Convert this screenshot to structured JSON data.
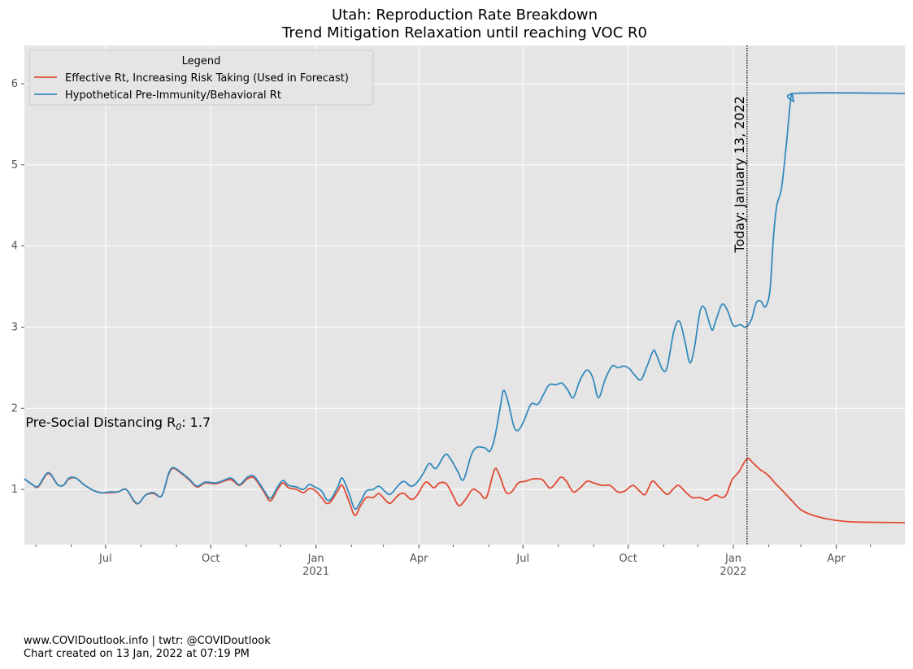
{
  "title_line1": "Utah: Reproduction Rate Breakdown",
  "title_line2": "Trend Mitigation Relaxation until reaching VOC R0",
  "footer_line1": "www.COVIDoutlook.info | twtr: @COVIDoutlook",
  "footer_line2": "Chart created on 13 Jan, 2022 at 07:19 PM",
  "colors": {
    "plot_bg": "#e5e5e5",
    "grid": "#ffffff",
    "effective": "#e24a33",
    "hypothetical": "#348abd",
    "tick_text": "#555555"
  },
  "chart_data": {
    "type": "line",
    "xlim": [
      "2020-04-21",
      "2022-05-31"
    ],
    "ylim": [
      0.32,
      6.47
    ],
    "grid": true,
    "yticks": [
      1,
      2,
      3,
      4,
      5,
      6
    ],
    "xticks": [
      {
        "date": "2020-07-01",
        "label": "Jul",
        "sublabel": ""
      },
      {
        "date": "2020-10-01",
        "label": "Oct",
        "sublabel": ""
      },
      {
        "date": "2021-01-01",
        "label": "Jan",
        "sublabel": "2021"
      },
      {
        "date": "2021-04-01",
        "label": "Apr",
        "sublabel": ""
      },
      {
        "date": "2021-07-01",
        "label": "Jul",
        "sublabel": ""
      },
      {
        "date": "2021-10-01",
        "label": "Oct",
        "sublabel": ""
      },
      {
        "date": "2022-01-01",
        "label": "Jan",
        "sublabel": "2022"
      },
      {
        "date": "2022-04-01",
        "label": "Apr",
        "sublabel": ""
      }
    ],
    "legend": {
      "title": "Legend",
      "position": "top-left"
    },
    "series": [
      {
        "name": "Effective Rt, Increasing Risk Taking (Used in Forecast)",
        "color": "#e24a33",
        "points": [
          [
            "2020-04-21",
            1.13
          ],
          [
            "2020-04-28",
            1.06
          ],
          [
            "2020-05-03",
            1.03
          ],
          [
            "2020-05-10",
            1.18
          ],
          [
            "2020-05-14",
            1.18
          ],
          [
            "2020-05-20",
            1.06
          ],
          [
            "2020-05-25",
            1.05
          ],
          [
            "2020-05-30",
            1.13
          ],
          [
            "2020-06-05",
            1.14
          ],
          [
            "2020-06-12",
            1.06
          ],
          [
            "2020-06-20",
            0.99
          ],
          [
            "2020-06-27",
            0.96
          ],
          [
            "2020-07-05",
            0.96
          ],
          [
            "2020-07-12",
            0.97
          ],
          [
            "2020-07-19",
            1.0
          ],
          [
            "2020-07-26",
            0.85
          ],
          [
            "2020-07-30",
            0.83
          ],
          [
            "2020-08-05",
            0.93
          ],
          [
            "2020-08-12",
            0.95
          ],
          [
            "2020-08-19",
            0.92
          ],
          [
            "2020-08-25",
            1.18
          ],
          [
            "2020-08-29",
            1.26
          ],
          [
            "2020-09-05",
            1.2
          ],
          [
            "2020-09-12",
            1.12
          ],
          [
            "2020-09-19",
            1.03
          ],
          [
            "2020-09-26",
            1.08
          ],
          [
            "2020-10-05",
            1.07
          ],
          [
            "2020-10-12",
            1.1
          ],
          [
            "2020-10-19",
            1.12
          ],
          [
            "2020-10-26",
            1.05
          ],
          [
            "2020-11-02",
            1.13
          ],
          [
            "2020-11-08",
            1.14
          ],
          [
            "2020-11-16",
            0.98
          ],
          [
            "2020-11-22",
            0.86
          ],
          [
            "2020-11-28",
            0.99
          ],
          [
            "2020-12-03",
            1.08
          ],
          [
            "2020-12-08",
            1.02
          ],
          [
            "2020-12-15",
            1.0
          ],
          [
            "2020-12-21",
            0.96
          ],
          [
            "2020-12-26",
            1.01
          ],
          [
            "2020-12-31",
            0.99
          ],
          [
            "2021-01-06",
            0.9
          ],
          [
            "2021-01-10",
            0.83
          ],
          [
            "2021-01-14",
            0.85
          ],
          [
            "2021-01-20",
            0.98
          ],
          [
            "2021-01-24",
            1.05
          ],
          [
            "2021-01-30",
            0.85
          ],
          [
            "2021-02-04",
            0.68
          ],
          [
            "2021-02-09",
            0.8
          ],
          [
            "2021-02-14",
            0.9
          ],
          [
            "2021-02-20",
            0.9
          ],
          [
            "2021-02-25",
            0.95
          ],
          [
            "2021-03-02",
            0.88
          ],
          [
            "2021-03-07",
            0.83
          ],
          [
            "2021-03-14",
            0.93
          ],
          [
            "2021-03-19",
            0.95
          ],
          [
            "2021-03-25",
            0.88
          ],
          [
            "2021-03-30",
            0.92
          ],
          [
            "2021-04-07",
            1.09
          ],
          [
            "2021-04-14",
            1.02
          ],
          [
            "2021-04-19",
            1.08
          ],
          [
            "2021-04-25",
            1.07
          ],
          [
            "2021-05-01",
            0.92
          ],
          [
            "2021-05-06",
            0.8
          ],
          [
            "2021-05-12",
            0.88
          ],
          [
            "2021-05-18",
            1.0
          ],
          [
            "2021-05-24",
            0.96
          ],
          [
            "2021-05-30",
            0.9
          ],
          [
            "2021-06-06",
            1.24
          ],
          [
            "2021-06-10",
            1.19
          ],
          [
            "2021-06-16",
            0.97
          ],
          [
            "2021-06-21",
            0.97
          ],
          [
            "2021-06-27",
            1.08
          ],
          [
            "2021-07-03",
            1.1
          ],
          [
            "2021-07-10",
            1.13
          ],
          [
            "2021-07-18",
            1.12
          ],
          [
            "2021-07-24",
            1.02
          ],
          [
            "2021-07-28",
            1.05
          ],
          [
            "2021-08-03",
            1.15
          ],
          [
            "2021-08-08",
            1.1
          ],
          [
            "2021-08-14",
            0.97
          ],
          [
            "2021-08-20",
            1.02
          ],
          [
            "2021-08-26",
            1.1
          ],
          [
            "2021-09-01",
            1.08
          ],
          [
            "2021-09-08",
            1.05
          ],
          [
            "2021-09-15",
            1.05
          ],
          [
            "2021-09-22",
            0.97
          ],
          [
            "2021-09-28",
            0.98
          ],
          [
            "2021-10-05",
            1.05
          ],
          [
            "2021-10-11",
            0.98
          ],
          [
            "2021-10-16",
            0.94
          ],
          [
            "2021-10-22",
            1.1
          ],
          [
            "2021-10-28",
            1.03
          ],
          [
            "2021-11-04",
            0.94
          ],
          [
            "2021-11-09",
            1.0
          ],
          [
            "2021-11-14",
            1.05
          ],
          [
            "2021-11-20",
            0.97
          ],
          [
            "2021-11-26",
            0.9
          ],
          [
            "2021-12-03",
            0.9
          ],
          [
            "2021-12-09",
            0.87
          ],
          [
            "2021-12-16",
            0.93
          ],
          [
            "2021-12-22",
            0.9
          ],
          [
            "2021-12-26",
            0.94
          ],
          [
            "2021-12-31",
            1.12
          ],
          [
            "2022-01-06",
            1.22
          ],
          [
            "2022-01-13",
            1.38
          ],
          [
            "2022-01-18",
            1.33
          ],
          [
            "2022-01-24",
            1.25
          ],
          [
            "2022-01-31",
            1.18
          ],
          [
            "2022-02-07",
            1.07
          ],
          [
            "2022-02-14",
            0.97
          ],
          [
            "2022-02-22",
            0.85
          ],
          [
            "2022-03-01",
            0.75
          ],
          [
            "2022-03-10",
            0.69
          ],
          [
            "2022-03-20",
            0.65
          ],
          [
            "2022-03-31",
            0.62
          ],
          [
            "2022-04-14",
            0.6
          ],
          [
            "2022-05-01",
            0.595
          ],
          [
            "2022-05-31",
            0.59
          ]
        ]
      },
      {
        "name": "Hypothetical Pre-Immunity/Behavioral Rt",
        "color": "#348abd",
        "points": [
          [
            "2020-04-21",
            1.13
          ],
          [
            "2020-04-28",
            1.06
          ],
          [
            "2020-05-03",
            1.04
          ],
          [
            "2020-05-10",
            1.19
          ],
          [
            "2020-05-14",
            1.19
          ],
          [
            "2020-05-20",
            1.06
          ],
          [
            "2020-05-25",
            1.05
          ],
          [
            "2020-05-30",
            1.14
          ],
          [
            "2020-06-05",
            1.14
          ],
          [
            "2020-06-12",
            1.06
          ],
          [
            "2020-06-20",
            0.99
          ],
          [
            "2020-06-27",
            0.96
          ],
          [
            "2020-07-05",
            0.97
          ],
          [
            "2020-07-12",
            0.97
          ],
          [
            "2020-07-19",
            1.0
          ],
          [
            "2020-07-26",
            0.86
          ],
          [
            "2020-07-30",
            0.83
          ],
          [
            "2020-08-05",
            0.93
          ],
          [
            "2020-08-12",
            0.96
          ],
          [
            "2020-08-19",
            0.92
          ],
          [
            "2020-08-25",
            1.19
          ],
          [
            "2020-08-29",
            1.27
          ],
          [
            "2020-09-05",
            1.21
          ],
          [
            "2020-09-12",
            1.13
          ],
          [
            "2020-09-19",
            1.04
          ],
          [
            "2020-09-26",
            1.09
          ],
          [
            "2020-10-05",
            1.08
          ],
          [
            "2020-10-12",
            1.11
          ],
          [
            "2020-10-19",
            1.14
          ],
          [
            "2020-10-26",
            1.06
          ],
          [
            "2020-11-02",
            1.15
          ],
          [
            "2020-11-08",
            1.16
          ],
          [
            "2020-11-16",
            1.0
          ],
          [
            "2020-11-22",
            0.89
          ],
          [
            "2020-11-28",
            1.02
          ],
          [
            "2020-12-03",
            1.11
          ],
          [
            "2020-12-08",
            1.05
          ],
          [
            "2020-12-15",
            1.03
          ],
          [
            "2020-12-21",
            1.0
          ],
          [
            "2020-12-26",
            1.06
          ],
          [
            "2020-12-31",
            1.03
          ],
          [
            "2021-01-06",
            0.98
          ],
          [
            "2021-01-10",
            0.88
          ],
          [
            "2021-01-14",
            0.88
          ],
          [
            "2021-01-20",
            1.03
          ],
          [
            "2021-01-24",
            1.14
          ],
          [
            "2021-01-30",
            0.95
          ],
          [
            "2021-02-04",
            0.76
          ],
          [
            "2021-02-09",
            0.85
          ],
          [
            "2021-02-14",
            0.98
          ],
          [
            "2021-02-20",
            1.0
          ],
          [
            "2021-02-25",
            1.04
          ],
          [
            "2021-03-02",
            0.98
          ],
          [
            "2021-03-07",
            0.94
          ],
          [
            "2021-03-14",
            1.05
          ],
          [
            "2021-03-19",
            1.1
          ],
          [
            "2021-03-25",
            1.04
          ],
          [
            "2021-03-30",
            1.08
          ],
          [
            "2021-04-05",
            1.2
          ],
          [
            "2021-04-10",
            1.32
          ],
          [
            "2021-04-16",
            1.26
          ],
          [
            "2021-04-24",
            1.43
          ],
          [
            "2021-04-29",
            1.37
          ],
          [
            "2021-05-05",
            1.22
          ],
          [
            "2021-05-10",
            1.12
          ],
          [
            "2021-05-17",
            1.43
          ],
          [
            "2021-05-22",
            1.52
          ],
          [
            "2021-05-29",
            1.51
          ],
          [
            "2021-06-02",
            1.47
          ],
          [
            "2021-06-06",
            1.62
          ],
          [
            "2021-06-11",
            2.0
          ],
          [
            "2021-06-14",
            2.22
          ],
          [
            "2021-06-18",
            2.08
          ],
          [
            "2021-06-23",
            1.78
          ],
          [
            "2021-06-27",
            1.73
          ],
          [
            "2021-07-02",
            1.85
          ],
          [
            "2021-07-08",
            2.05
          ],
          [
            "2021-07-14",
            2.05
          ],
          [
            "2021-07-19",
            2.17
          ],
          [
            "2021-07-24",
            2.29
          ],
          [
            "2021-07-30",
            2.29
          ],
          [
            "2021-08-04",
            2.31
          ],
          [
            "2021-08-09",
            2.23
          ],
          [
            "2021-08-14",
            2.13
          ],
          [
            "2021-08-20",
            2.35
          ],
          [
            "2021-08-26",
            2.47
          ],
          [
            "2021-08-31",
            2.38
          ],
          [
            "2021-09-05",
            2.13
          ],
          [
            "2021-09-11",
            2.36
          ],
          [
            "2021-09-17",
            2.52
          ],
          [
            "2021-09-22",
            2.5
          ],
          [
            "2021-09-27",
            2.52
          ],
          [
            "2021-10-02",
            2.49
          ],
          [
            "2021-10-06",
            2.42
          ],
          [
            "2021-10-12",
            2.35
          ],
          [
            "2021-10-17",
            2.5
          ],
          [
            "2021-10-23",
            2.71
          ],
          [
            "2021-10-26",
            2.65
          ],
          [
            "2021-10-31",
            2.48
          ],
          [
            "2021-11-04",
            2.5
          ],
          [
            "2021-11-10",
            2.95
          ],
          [
            "2021-11-15",
            3.07
          ],
          [
            "2021-11-20",
            2.8
          ],
          [
            "2021-11-24",
            2.56
          ],
          [
            "2021-11-28",
            2.75
          ],
          [
            "2021-12-03",
            3.2
          ],
          [
            "2021-12-07",
            3.23
          ],
          [
            "2021-12-13",
            2.97
          ],
          [
            "2021-12-16",
            3.05
          ],
          [
            "2021-12-22",
            3.28
          ],
          [
            "2021-12-27",
            3.2
          ],
          [
            "2022-01-01",
            3.02
          ],
          [
            "2022-01-07",
            3.03
          ],
          [
            "2022-01-12",
            3.0
          ],
          [
            "2022-01-17",
            3.1
          ],
          [
            "2022-01-21",
            3.3
          ],
          [
            "2022-01-25",
            3.32
          ],
          [
            "2022-01-29",
            3.25
          ],
          [
            "2022-02-02",
            3.45
          ],
          [
            "2022-02-05",
            4.1
          ],
          [
            "2022-02-08",
            4.5
          ],
          [
            "2022-02-12",
            4.7
          ],
          [
            "2022-02-16",
            5.2
          ],
          [
            "2022-02-19",
            5.65
          ],
          [
            "2022-02-21",
            5.88
          ],
          [
            "2022-02-23",
            5.78
          ],
          [
            "2022-02-25",
            5.88
          ],
          [
            "2022-05-31",
            5.88
          ]
        ]
      }
    ],
    "annotations": [
      {
        "type": "vline",
        "date": "2022-01-13",
        "label": "Today: January 13, 2022"
      },
      {
        "type": "text",
        "label": "Pre-Social Distancing R",
        "subscript": "0",
        "suffix": ": 1.7",
        "x": "2020-04-22",
        "y": 1.82
      }
    ]
  }
}
